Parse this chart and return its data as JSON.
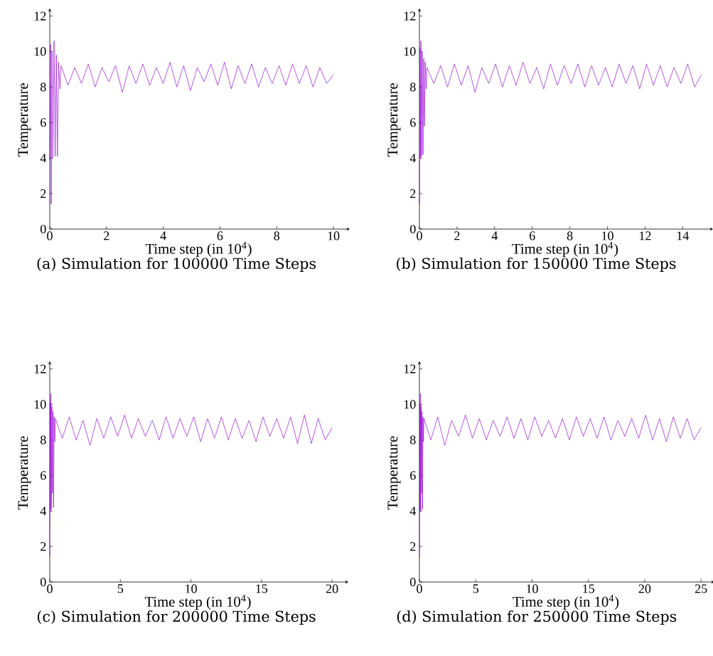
{
  "chart_data": [
    {
      "type": "line",
      "title": "(a) Simulation for 100000 Time Steps",
      "xlabel": "Time step (in 10$^{4}$)",
      "ylabel": "Temperature",
      "color": "#9400d3",
      "xlim": [
        0,
        10.5
      ],
      "ylim": [
        0,
        12.3
      ],
      "xticks": [
        0,
        2,
        4,
        6,
        8,
        10
      ],
      "yticks": [
        0,
        2,
        4,
        6,
        8,
        10,
        12
      ],
      "x": [
        0,
        0.03,
        0.05,
        0.08,
        0.11,
        0.15,
        0.19,
        0.23,
        0.27,
        0.31,
        0.36,
        0.4,
        0.64,
        0.88,
        1.12,
        1.36,
        1.6,
        1.84,
        2.08,
        2.32,
        2.56,
        2.8,
        3.04,
        3.28,
        3.52,
        3.76,
        4.0,
        4.24,
        4.48,
        4.72,
        4.96,
        5.2,
        5.44,
        5.68,
        5.92,
        6.16,
        6.4,
        6.64,
        6.88,
        7.12,
        7.36,
        7.6,
        7.84,
        8.08,
        8.32,
        8.56,
        8.8,
        9.04,
        9.28,
        9.52,
        9.76,
        10.0
      ],
      "values": [
        3.9,
        10.4,
        1.4,
        10.0,
        4.0,
        10.6,
        4.1,
        9.8,
        4.1,
        9.4,
        7.9,
        9.2,
        8.1,
        9.1,
        8.2,
        9.3,
        8.0,
        9.1,
        8.3,
        9.2,
        7.7,
        9.2,
        8.2,
        9.3,
        8.1,
        9.1,
        8.2,
        9.4,
        8.0,
        9.2,
        7.8,
        9.1,
        8.3,
        9.3,
        8.1,
        9.4,
        7.9,
        9.2,
        8.2,
        9.3,
        8.0,
        9.1,
        8.2,
        9.2,
        8.1,
        9.3,
        8.2,
        9.2,
        8.0,
        9.1,
        8.2,
        8.7
      ]
    },
    {
      "type": "line",
      "title": "(b) Simulation for 150000 Time Steps",
      "xlabel": "Time step (in 10$^{4}$)",
      "ylabel": "Temperature",
      "color": "#9400d3",
      "xlim": [
        0,
        15.5
      ],
      "ylim": [
        0,
        12.3
      ],
      "xticks": [
        0,
        2,
        4,
        6,
        8,
        10,
        12,
        14
      ],
      "yticks": [
        0,
        2,
        4,
        6,
        8,
        10,
        12
      ],
      "x": [
        0,
        0.03,
        0.05,
        0.08,
        0.11,
        0.15,
        0.19,
        0.23,
        0.27,
        0.31,
        0.36,
        0.4,
        0.765,
        1.13,
        1.495,
        1.86,
        2.225,
        2.59,
        2.955,
        3.32,
        3.685,
        4.05,
        4.415,
        4.78,
        5.145,
        5.51,
        5.875,
        6.24,
        6.605,
        6.97,
        7.335,
        7.7,
        8.065,
        8.43,
        8.795,
        9.16,
        9.525,
        9.89,
        10.255,
        10.62,
        10.985,
        11.35,
        11.715,
        12.08,
        12.445,
        12.81,
        13.175,
        13.54,
        13.905,
        14.27,
        14.635,
        15.0
      ],
      "values": [
        1.4,
        10.2,
        4.0,
        10.6,
        4.1,
        10.0,
        4.2,
        9.6,
        5.8,
        9.4,
        7.9,
        9.1,
        8.2,
        9.2,
        8.0,
        9.3,
        8.1,
        9.2,
        7.7,
        9.1,
        8.2,
        9.3,
        8.0,
        9.2,
        8.1,
        9.4,
        8.2,
        9.1,
        7.9,
        9.3,
        8.1,
        9.2,
        8.2,
        9.3,
        8.0,
        9.2,
        8.1,
        9.1,
        8.0,
        9.3,
        8.2,
        9.2,
        7.9,
        9.3,
        8.1,
        9.2,
        8.0,
        9.1,
        8.2,
        9.3,
        8.0,
        8.7
      ]
    },
    {
      "type": "line",
      "title": "(c) Simulation for 200000 Time Steps",
      "xlabel": "Time step (in 10$^{4}$)",
      "ylabel": "Temperature",
      "color": "#9400d3",
      "xlim": [
        0,
        21
      ],
      "ylim": [
        0,
        12.3
      ],
      "xticks": [
        0,
        5,
        10,
        15,
        20
      ],
      "yticks": [
        0,
        2,
        4,
        6,
        8,
        10,
        12
      ],
      "x": [
        0,
        0.03,
        0.05,
        0.08,
        0.11,
        0.15,
        0.19,
        0.23,
        0.27,
        0.31,
        0.36,
        0.4,
        0.89,
        1.38,
        1.87,
        2.36,
        2.85,
        3.34,
        3.83,
        4.32,
        4.81,
        5.3,
        5.79,
        6.28,
        6.77,
        7.26,
        7.75,
        8.24,
        8.73,
        9.22,
        9.71,
        10.2,
        10.69,
        11.18,
        11.67,
        12.16,
        12.65,
        13.14,
        13.63,
        14.12,
        14.61,
        15.1,
        15.59,
        16.08,
        16.57,
        17.06,
        17.55,
        18.04,
        18.53,
        19.02,
        19.51,
        20.0
      ],
      "values": [
        1.4,
        10.1,
        4.0,
        10.6,
        4.1,
        9.9,
        5.0,
        9.6,
        4.2,
        9.3,
        7.9,
        9.2,
        8.1,
        9.3,
        8.0,
        9.1,
        7.7,
        9.2,
        8.1,
        9.3,
        8.2,
        9.4,
        8.1,
        9.2,
        8.2,
        9.1,
        8.0,
        9.3,
        8.1,
        9.2,
        8.2,
        9.3,
        7.9,
        9.2,
        8.1,
        9.3,
        8.0,
        9.2,
        8.1,
        9.1,
        7.9,
        9.3,
        8.2,
        9.2,
        8.1,
        9.3,
        7.8,
        9.4,
        7.8,
        9.2,
        8.0,
        8.7
      ]
    },
    {
      "type": "line",
      "title": "(d) Simulation for 250000 Time Steps",
      "xlabel": "Time step (in 10$^{4}$)",
      "ylabel": "Temperature",
      "color": "#9400d3",
      "xlim": [
        0,
        26
      ],
      "ylim": [
        0,
        12.3
      ],
      "xticks": [
        0,
        5,
        10,
        15,
        20,
        25
      ],
      "yticks": [
        0,
        2,
        4,
        6,
        8,
        10,
        12
      ],
      "x": [
        0,
        0.03,
        0.05,
        0.08,
        0.11,
        0.15,
        0.19,
        0.23,
        0.27,
        0.31,
        0.36,
        0.4,
        1.015,
        1.63,
        2.245,
        2.86,
        3.475,
        4.09,
        4.705,
        5.32,
        5.935,
        6.55,
        7.165,
        7.78,
        8.395,
        9.01,
        9.625,
        10.24,
        10.855,
        11.47,
        12.085,
        12.7,
        13.315,
        13.93,
        14.545,
        15.16,
        15.775,
        16.39,
        17.005,
        17.62,
        18.235,
        18.85,
        19.465,
        20.08,
        20.695,
        21.31,
        21.925,
        22.54,
        23.155,
        23.77,
        24.385,
        25.0
      ],
      "values": [
        1.4,
        10.1,
        4.0,
        10.6,
        4.0,
        9.9,
        5.0,
        9.6,
        4.1,
        9.3,
        7.9,
        9.2,
        8.0,
        9.3,
        7.7,
        9.1,
        8.2,
        9.4,
        8.1,
        9.2,
        8.0,
        9.1,
        8.2,
        9.3,
        8.1,
        9.2,
        8.0,
        9.3,
        8.2,
        9.1,
        8.1,
        9.2,
        8.0,
        9.3,
        8.2,
        9.2,
        8.1,
        9.3,
        8.0,
        9.1,
        8.2,
        9.2,
        8.1,
        9.4,
        8.0,
        9.2,
        7.9,
        9.3,
        8.1,
        9.2,
        8.0,
        8.7
      ]
    }
  ]
}
